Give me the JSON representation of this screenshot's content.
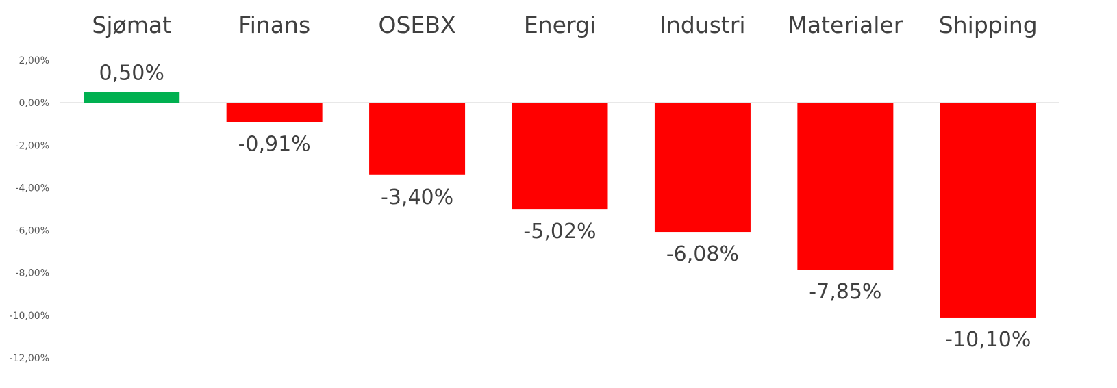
{
  "chart_data": {
    "type": "bar",
    "title": "",
    "xlabel": "",
    "ylabel": "",
    "categories": [
      "Sjømat",
      "Finans",
      "OSEBX",
      "Energi",
      "Industri",
      "Materialer",
      "Shipping"
    ],
    "values": [
      0.5,
      -0.91,
      -3.4,
      -5.02,
      -6.08,
      -7.85,
      -10.1
    ],
    "data_labels": [
      "0,50%",
      "-0,91%",
      "-3,40%",
      "-5,02%",
      "-6,08%",
      "-7,85%",
      "-10,10%"
    ],
    "ylim": [
      -12,
      2
    ],
    "y_ticks": [
      2,
      0,
      -2,
      -4,
      -6,
      -8,
      -10,
      -12
    ],
    "y_tick_labels": [
      "2,00%",
      "0,00%",
      "-2,00%",
      "-4,00%",
      "-6,00%",
      "-8,00%",
      "-10,00%",
      "-12,00%"
    ],
    "category_axis_position": "top",
    "grid": false,
    "legend": "none",
    "colors": {
      "positive": "#00b050",
      "negative": "#ff0000"
    }
  }
}
